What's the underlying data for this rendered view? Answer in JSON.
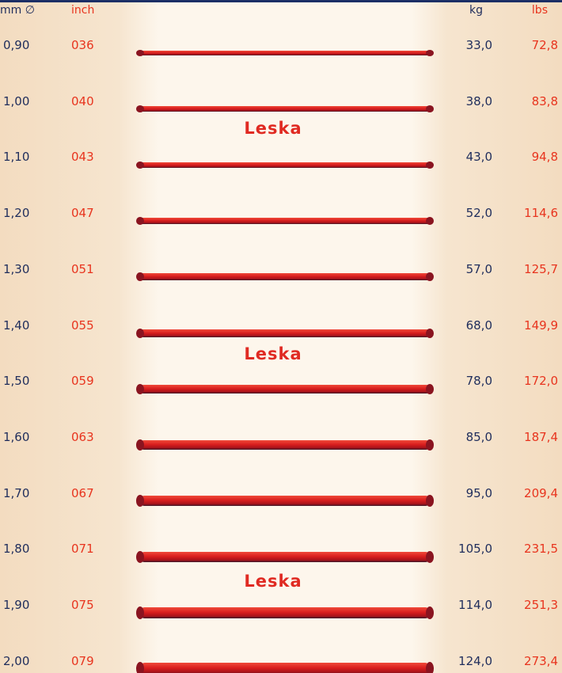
{
  "header": {
    "columns": [
      "mm ∅",
      "inch",
      "kg",
      "lbs"
    ]
  },
  "table": {
    "rows": [
      [
        "0,90",
        "036",
        "33,0",
        "72,8"
      ],
      [
        "1,00",
        "040",
        "38,0",
        "83,8"
      ],
      [
        "1,10",
        "043",
        "43,0",
        "94,8"
      ],
      [
        "1,20",
        "047",
        "52,0",
        "114,6"
      ],
      [
        "1,30",
        "051",
        "57,0",
        "125,7"
      ],
      [
        "1,40",
        "055",
        "68,0",
        "149,9"
      ],
      [
        "1,50",
        "059",
        "78,0",
        "172,0"
      ],
      [
        "1,60",
        "063",
        "85,0",
        "187,4"
      ],
      [
        "1,70",
        "067",
        "95,0",
        "209,4"
      ],
      [
        "1,80",
        "071",
        "105,0",
        "231,5"
      ],
      [
        "1,90",
        "075",
        "114,0",
        "251,3"
      ],
      [
        "2,00",
        "079",
        "124,0",
        "273,4"
      ]
    ]
  },
  "labels": [
    "Leska",
    "Leska",
    "Leska"
  ]
}
